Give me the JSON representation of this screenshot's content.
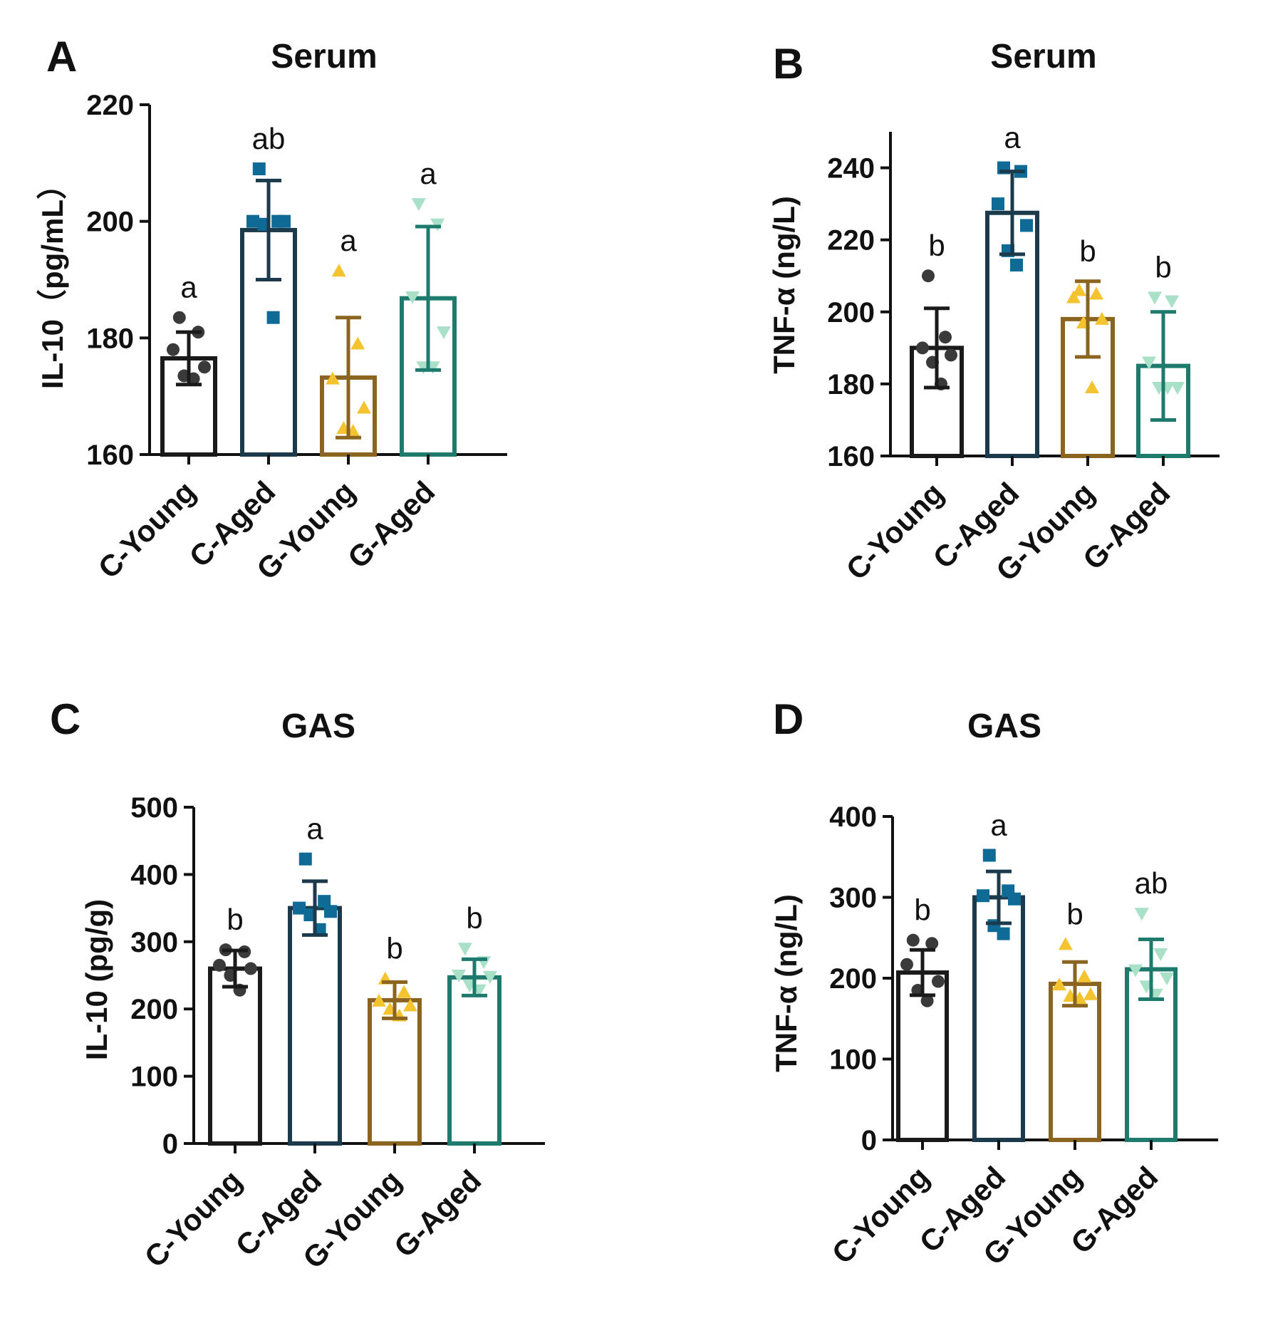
{
  "colors": {
    "axis": "#111111",
    "groups": [
      "#1a1a1a",
      "#1b3a4b",
      "#8b6420",
      "#1f7a6e"
    ],
    "points": [
      "#3a3a3a",
      "#0f6a96",
      "#f4c430",
      "#a8e0c8"
    ]
  },
  "marker_shapes": [
    "circle",
    "square",
    "triangle-up",
    "triangle-down"
  ],
  "chart_data": [
    {
      "type": "bar",
      "panel": "A",
      "title": "Serum",
      "ylabel": "IL-10（pg/mL）",
      "ylim": [
        160,
        220
      ],
      "yticks": [
        160,
        180,
        200,
        220
      ],
      "categories": [
        "C-Young",
        "C-Aged",
        "G-Young",
        "G-Aged"
      ],
      "values": [
        176.5,
        198.5,
        173.2,
        186.8
      ],
      "errors": [
        4.5,
        8.5,
        10.3,
        12.3
      ],
      "sig": [
        "a",
        "ab",
        "a",
        "a"
      ],
      "points": [
        [
          183.5,
          181,
          178,
          175,
          173.5,
          173
        ],
        [
          209,
          200,
          200,
          200,
          199.5,
          183.5
        ],
        [
          191.5,
          179,
          173,
          168,
          164.5,
          164
        ],
        [
          203,
          199.5,
          187,
          181,
          175,
          175
        ]
      ]
    },
    {
      "type": "bar",
      "panel": "B",
      "title": "Serum",
      "ylabel": "TNF-α (ng/L)",
      "ylim": [
        160,
        250
      ],
      "yticks": [
        160,
        180,
        200,
        220,
        240
      ],
      "categories": [
        "C-Young",
        "C-Aged",
        "G-Young",
        "G-Aged"
      ],
      "values": [
        190,
        227.5,
        198,
        185
      ],
      "errors": [
        11,
        11.5,
        10.5,
        15
      ],
      "sig": [
        "b",
        "a",
        "b",
        "b"
      ],
      "points": [
        [
          210,
          193,
          190,
          188,
          186,
          180
        ],
        [
          240,
          239,
          230,
          224,
          217,
          213
        ],
        [
          206,
          205,
          204,
          198,
          197,
          179
        ],
        [
          204,
          203,
          186,
          179,
          179,
          179
        ]
      ]
    },
    {
      "type": "bar",
      "panel": "C",
      "title": "GAS",
      "ylabel": "IL-10 (pg/g)",
      "ylim": [
        0,
        500
      ],
      "yticks": [
        0,
        100,
        200,
        300,
        400,
        500
      ],
      "categories": [
        "C-Young",
        "C-Aged",
        "G-Young",
        "G-Aged"
      ],
      "values": [
        260,
        350,
        213,
        247
      ],
      "errors": [
        27,
        40,
        27,
        27
      ],
      "sig": [
        "b",
        "a",
        "b",
        "b"
      ],
      "points": [
        [
          288,
          285,
          265,
          260,
          250,
          228
        ],
        [
          423,
          360,
          350,
          345,
          340,
          318
        ],
        [
          245,
          225,
          212,
          205,
          200,
          190
        ],
        [
          290,
          270,
          250,
          248,
          235,
          228
        ]
      ]
    },
    {
      "type": "bar",
      "panel": "D",
      "title": "GAS",
      "ylabel": "TNF-α (ng/L)",
      "ylim": [
        0,
        400
      ],
      "yticks": [
        0,
        100,
        200,
        300,
        400
      ],
      "categories": [
        "C-Young",
        "C-Aged",
        "G-Young",
        "G-Aged"
      ],
      "values": [
        207,
        300,
        193,
        211
      ],
      "errors": [
        28,
        32,
        27,
        37
      ],
      "sig": [
        "b",
        "a",
        "b",
        "ab"
      ],
      "points": [
        [
          247,
          243,
          217,
          196,
          185,
          172
        ],
        [
          352,
          308,
          302,
          298,
          265,
          255
        ],
        [
          242,
          202,
          192,
          180,
          178,
          175
        ],
        [
          280,
          230,
          210,
          200,
          190,
          180
        ]
      ]
    }
  ]
}
